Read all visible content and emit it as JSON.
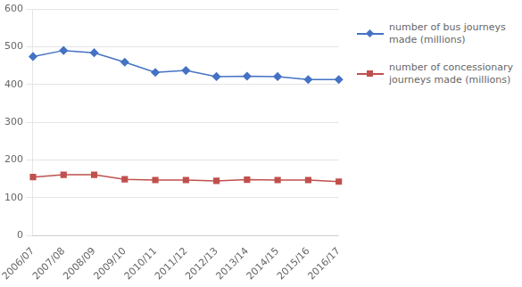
{
  "chart_data": {
    "type": "line",
    "categories": [
      "2006/07",
      "2007/08",
      "2008/09",
      "2009/10",
      "2010/11",
      "2011/12",
      "2012/13",
      "2013/14",
      "2014/15",
      "2015/16",
      "2016/17"
    ],
    "series": [
      {
        "name": "number of bus journeys\nmade (millions)",
        "color": "#4472C4",
        "marker": "diamond",
        "values": [
          474,
          490,
          484,
          459,
          432,
          437,
          421,
          422,
          421,
          413,
          413
        ]
      },
      {
        "name": "number of concessionary\njourneys made (millions)",
        "color": "#C0504D",
        "marker": "square",
        "values": [
          155,
          161,
          161,
          149,
          147,
          147,
          145,
          148,
          147,
          147,
          143
        ]
      }
    ],
    "ylim": [
      0,
      600
    ],
    "yticks": [
      0,
      100,
      200,
      300,
      400,
      500,
      600
    ],
    "grid": "y",
    "legend": "right"
  }
}
